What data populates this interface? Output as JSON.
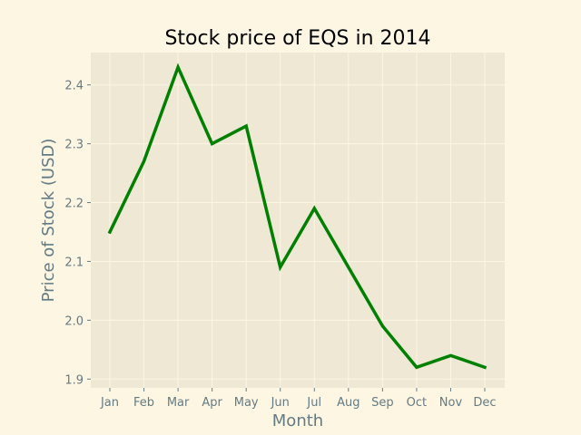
{
  "chart_data": {
    "type": "line",
    "title": "Stock price of EQS in 2014",
    "xlabel": "Month",
    "ylabel": "Price of Stock (USD)",
    "categories": [
      "Jan",
      "Feb",
      "Mar",
      "Apr",
      "May",
      "Jun",
      "Jul",
      "Aug",
      "Sep",
      "Oct",
      "Nov",
      "Dec"
    ],
    "series": [
      {
        "values": [
          2.15,
          2.27,
          2.43,
          2.3,
          2.33,
          2.09,
          2.19,
          2.09,
          1.99,
          1.92,
          1.94,
          1.92
        ]
      }
    ],
    "ylim": [
      1.885,
      2.455
    ],
    "yticks": [
      1.9,
      2.0,
      2.1,
      2.2,
      2.3,
      2.4
    ],
    "ytick_labels": [
      "1.9",
      "2.0",
      "2.1",
      "2.2",
      "2.3",
      "2.4"
    ],
    "grid": true,
    "colors": {
      "line": "#008000",
      "plot_bg": "#eee8d5",
      "page_bg": "#fdf6e3",
      "grid": "#fdf6e3"
    }
  }
}
